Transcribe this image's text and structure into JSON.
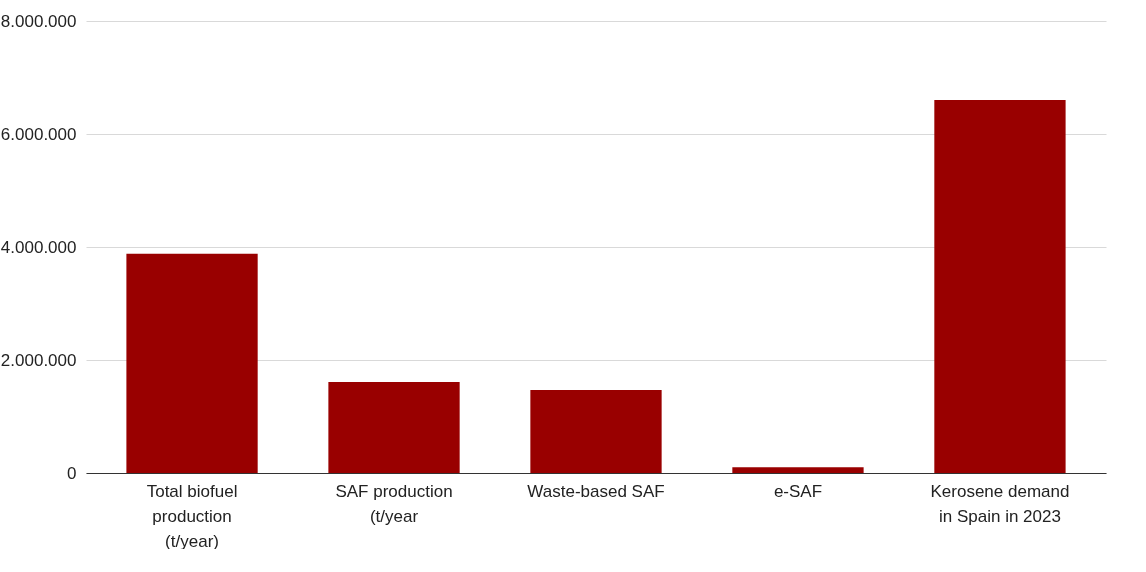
{
  "chart_data": {
    "type": "bar",
    "categories": [
      "Total biofuel production (t/year)",
      "SAF production (t/year",
      "Waste-based SAF",
      "e-SAF",
      "Kerosene demand in Spain in 2023"
    ],
    "values": [
      3880000,
      1610000,
      1470000,
      100000,
      6600000
    ],
    "color": "#990000",
    "ylim": [
      0,
      8000000
    ],
    "yticks": [
      0,
      {
        "value": 2000000,
        "label": "2.000.000"
      },
      {
        "value": 4000000,
        "label": "4.000.000"
      },
      {
        "value": 6000000,
        "label": "6.000.000"
      },
      {
        "value": 8000000,
        "label": "8.000.000"
      }
    ],
    "grid": "y"
  }
}
